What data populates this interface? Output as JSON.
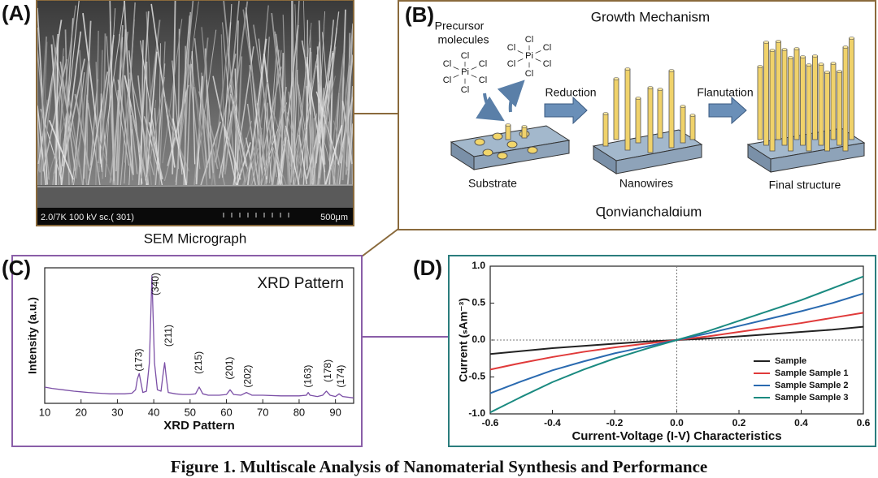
{
  "caption": "Figure 1. Multiscale Analysis of Nanomaterial Synthesis and Performance",
  "panels": {
    "a": {
      "label": "(A)",
      "info": "2.0/7K 100 kV sc.( 301)",
      "scale": "500μm",
      "caption": "SEM Micrograph"
    },
    "b": {
      "label": "(B)",
      "title": "Growth Mechanism",
      "precursor": [
        "Precursor",
        "molecules"
      ],
      "molecules": [
        {
          "center": "Pi",
          "ligands": [
            "Cl",
            "Cl",
            "Cl",
            "Cl",
            "Cl",
            "Cl"
          ]
        },
        {
          "center": "Pi",
          "ligands": [
            "Cl",
            "Cl",
            "Cl",
            "Cl",
            "Cl",
            "Cl"
          ]
        }
      ],
      "steps": [
        "Reduction",
        "Flanutation"
      ],
      "stages": [
        "Substrate",
        "Nanowires",
        "Final structure"
      ],
      "footer": "Ɋonvianchalɑium"
    },
    "c": {
      "label": "(C)"
    },
    "d": {
      "label": "(D)"
    }
  },
  "chart_data": [
    {
      "type": "line",
      "plot_title": "XRD Pattern",
      "xlabel": "XRD Pattern",
      "ylabel": "Intensity (a.u.)",
      "color": "#7b4fa6",
      "x": [
        10,
        12,
        15,
        18,
        20,
        22,
        25,
        28,
        30,
        32,
        34,
        35,
        35.5,
        36,
        36.5,
        37,
        38,
        38.8,
        39.5,
        40.2,
        41,
        42,
        42.5,
        43,
        43.5,
        44,
        46,
        48,
        50,
        51.5,
        52.5,
        53.5,
        55,
        58,
        60,
        61,
        62,
        64,
        65.5,
        67,
        70,
        75,
        80,
        82,
        82.5,
        83,
        85,
        86.5,
        87.5,
        88.5,
        90,
        91,
        92,
        95
      ],
      "values": [
        0.12,
        0.11,
        0.1,
        0.09,
        0.085,
        0.08,
        0.075,
        0.07,
        0.07,
        0.07,
        0.075,
        0.1,
        0.18,
        0.22,
        0.15,
        0.08,
        0.09,
        0.3,
        0.94,
        0.3,
        0.1,
        0.09,
        0.2,
        0.3,
        0.18,
        0.08,
        0.07,
        0.065,
        0.065,
        0.07,
        0.12,
        0.07,
        0.06,
        0.06,
        0.065,
        0.1,
        0.065,
        0.06,
        0.08,
        0.06,
        0.06,
        0.055,
        0.055,
        0.06,
        0.08,
        0.06,
        0.05,
        0.06,
        0.09,
        0.06,
        0.05,
        0.07,
        0.05,
        0.04
      ],
      "xlim": [
        10,
        95
      ],
      "ylim": [
        0,
        1
      ],
      "xticks": [
        10,
        20,
        30,
        40,
        50,
        60,
        70,
        80,
        90
      ],
      "annotations": [
        {
          "text": "(173)",
          "x": 36,
          "y": 0.32
        },
        {
          "text": "(340)",
          "x": 40.6,
          "y": 0.88
        },
        {
          "text": "(211)",
          "x": 44.2,
          "y": 0.5
        },
        {
          "text": "(215)",
          "x": 52.5,
          "y": 0.3
        },
        {
          "text": "(201)",
          "x": 61,
          "y": 0.26
        },
        {
          "text": "(202)",
          "x": 66,
          "y": 0.2
        },
        {
          "text": "(163)",
          "x": 82.5,
          "y": 0.2
        },
        {
          "text": "(178)",
          "x": 88,
          "y": 0.24
        },
        {
          "text": "(174)",
          "x": 91.6,
          "y": 0.2
        }
      ]
    },
    {
      "type": "line",
      "xlabel": "Current-Voltage (I-V) Characteristics",
      "ylabel": "Current (ₛAm⁻³)",
      "x": [
        -0.6,
        -0.5,
        -0.4,
        -0.3,
        -0.2,
        -0.1,
        0,
        0.1,
        0.2,
        0.3,
        0.4,
        0.5,
        0.6
      ],
      "series": [
        {
          "name": "Sample",
          "color": "#222222",
          "values": [
            -0.19,
            -0.15,
            -0.11,
            -0.08,
            -0.05,
            -0.02,
            0,
            0.02,
            0.05,
            0.08,
            0.11,
            0.14,
            0.18
          ]
        },
        {
          "name": "Sample Sample 1",
          "color": "#e03a3a",
          "values": [
            -0.4,
            -0.31,
            -0.23,
            -0.16,
            -0.1,
            -0.05,
            0,
            0.05,
            0.11,
            0.17,
            0.23,
            0.3,
            0.37
          ]
        },
        {
          "name": "Sample Sample 2",
          "color": "#2a6ab0",
          "values": [
            -0.72,
            -0.56,
            -0.41,
            -0.29,
            -0.18,
            -0.09,
            0,
            0.09,
            0.19,
            0.29,
            0.39,
            0.5,
            0.63
          ]
        },
        {
          "name": "Sample Sample 3",
          "color": "#1a8a80",
          "values": [
            -0.98,
            -0.77,
            -0.57,
            -0.4,
            -0.25,
            -0.12,
            0,
            0.12,
            0.26,
            0.4,
            0.54,
            0.7,
            0.86
          ]
        }
      ],
      "xlim": [
        -0.6,
        0.6
      ],
      "ylim": [
        -1,
        1
      ],
      "xticks": [
        -0.6,
        -0.4,
        -0.2,
        {
          "value": 0,
          "label": "0.0"
        },
        0.2,
        0.4,
        0.6
      ],
      "yticks": [
        {
          "value": -1,
          "label": "-1.0"
        },
        -0.5,
        {
          "value": 0,
          "label": "0.0"
        },
        0.5,
        {
          "value": 1,
          "label": "1.0"
        }
      ],
      "zero_lines": true,
      "legend": "lower right"
    }
  ]
}
